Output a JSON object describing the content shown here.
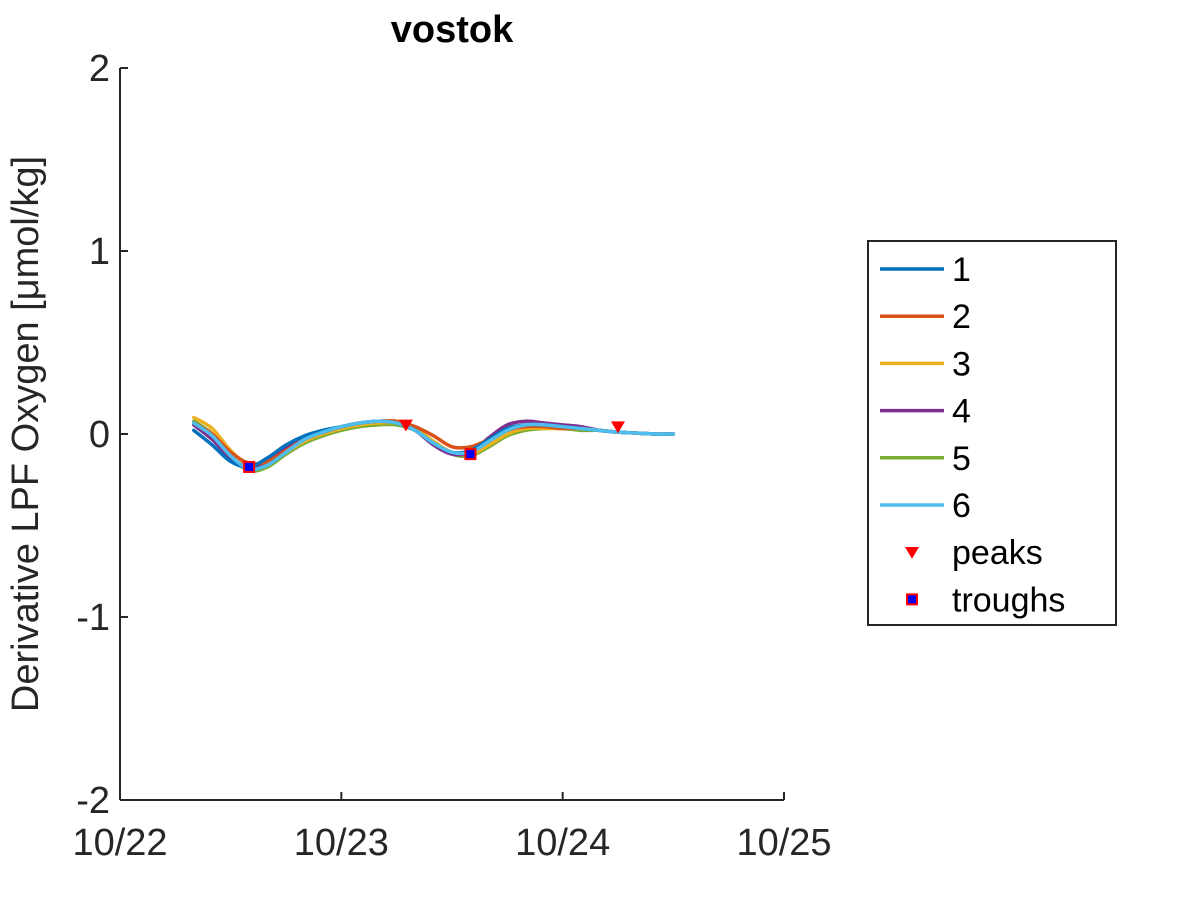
{
  "chart_data": {
    "type": "line",
    "title": "vostok",
    "xlabel": "",
    "ylabel": "Derivative LPF Oxygen [μmol/kg]",
    "xlim": [
      "10/22",
      "10/25"
    ],
    "ylim": [
      -2,
      2
    ],
    "xticks": [
      "10/22",
      "10/23",
      "10/24",
      "10/25"
    ],
    "yticks": [
      -2,
      -1,
      0,
      1,
      2
    ],
    "grid": false,
    "legend_position": "right",
    "series": [
      {
        "name": "1",
        "color": "#0072BD",
        "x": [
          "10/22 08:00",
          "10/22 10:00",
          "10/22 12:00",
          "10/22 14:00",
          "10/22 16:00",
          "10/22 18:00",
          "10/22 20:00",
          "10/22 22:00",
          "10/23 00:00",
          "10/23 02:00",
          "10/23 04:00",
          "10/23 06:00",
          "10/23 08:00",
          "10/23 10:00",
          "10/23 12:00",
          "10/23 14:00",
          "10/23 16:00",
          "10/23 18:00",
          "10/23 20:00",
          "10/23 22:00",
          "10/24 00:00",
          "10/24 02:00",
          "10/24 04:00",
          "10/24 06:00",
          "10/24 08:00",
          "10/24 10:00",
          "10/24 12:00"
        ],
        "y": [
          0.02,
          -0.06,
          -0.15,
          -0.18,
          -0.13,
          -0.06,
          -0.01,
          0.02,
          0.04,
          0.06,
          0.07,
          0.06,
          0.02,
          -0.05,
          -0.1,
          -0.09,
          -0.03,
          0.03,
          0.05,
          0.05,
          0.04,
          0.03,
          0.02,
          0.01,
          0.005,
          0.0,
          0.0
        ]
      },
      {
        "name": "2",
        "color": "#D95319",
        "x": [
          "10/22 08:00",
          "10/22 10:00",
          "10/22 12:00",
          "10/22 14:00",
          "10/22 16:00",
          "10/22 18:00",
          "10/22 20:00",
          "10/22 22:00",
          "10/23 00:00",
          "10/23 02:00",
          "10/23 04:00",
          "10/23 06:00",
          "10/23 08:00",
          "10/23 10:00",
          "10/23 12:00",
          "10/23 14:00",
          "10/23 16:00",
          "10/23 18:00",
          "10/23 20:00",
          "10/23 22:00",
          "10/24 00:00",
          "10/24 02:00",
          "10/24 04:00",
          "10/24 06:00",
          "10/24 08:00",
          "10/24 10:00",
          "10/24 12:00"
        ],
        "y": [
          0.06,
          0.0,
          -0.1,
          -0.16,
          -0.15,
          -0.09,
          -0.03,
          0.01,
          0.04,
          0.06,
          0.07,
          0.07,
          0.04,
          -0.01,
          -0.07,
          -0.07,
          -0.03,
          0.02,
          0.04,
          0.04,
          0.03,
          0.03,
          0.02,
          0.01,
          0.005,
          0.0,
          0.0
        ]
      },
      {
        "name": "3",
        "color": "#EDB120",
        "x": [
          "10/22 08:00",
          "10/22 10:00",
          "10/22 12:00",
          "10/22 14:00",
          "10/22 16:00",
          "10/22 18:00",
          "10/22 20:00",
          "10/22 22:00",
          "10/23 00:00",
          "10/23 02:00",
          "10/23 04:00",
          "10/23 06:00",
          "10/23 08:00",
          "10/23 10:00",
          "10/23 12:00",
          "10/23 14:00",
          "10/23 16:00",
          "10/23 18:00",
          "10/23 20:00",
          "10/23 22:00",
          "10/24 00:00",
          "10/24 02:00",
          "10/24 04:00",
          "10/24 06:00",
          "10/24 08:00",
          "10/24 10:00",
          "10/24 12:00"
        ],
        "y": [
          0.09,
          0.03,
          -0.09,
          -0.17,
          -0.16,
          -0.1,
          -0.04,
          0.0,
          0.03,
          0.05,
          0.06,
          0.06,
          0.03,
          -0.04,
          -0.1,
          -0.11,
          -0.06,
          0.0,
          0.03,
          0.03,
          0.03,
          0.03,
          0.02,
          0.01,
          0.005,
          0.0,
          0.0
        ]
      },
      {
        "name": "4",
        "color": "#7E2F8E",
        "x": [
          "10/22 08:00",
          "10/22 10:00",
          "10/22 12:00",
          "10/22 14:00",
          "10/22 16:00",
          "10/22 18:00",
          "10/22 20:00",
          "10/22 22:00",
          "10/23 00:00",
          "10/23 02:00",
          "10/23 04:00",
          "10/23 06:00",
          "10/23 08:00",
          "10/23 10:00",
          "10/23 12:00",
          "10/23 14:00",
          "10/23 16:00",
          "10/23 18:00",
          "10/23 20:00",
          "10/23 22:00",
          "10/24 00:00",
          "10/24 02:00",
          "10/24 04:00",
          "10/24 06:00",
          "10/24 08:00",
          "10/24 10:00",
          "10/24 12:00"
        ],
        "y": [
          0.05,
          -0.03,
          -0.13,
          -0.18,
          -0.15,
          -0.08,
          -0.02,
          0.01,
          0.04,
          0.06,
          0.07,
          0.06,
          0.02,
          -0.06,
          -0.11,
          -0.1,
          -0.02,
          0.05,
          0.07,
          0.06,
          0.05,
          0.04,
          0.02,
          0.01,
          0.005,
          0.0,
          0.0
        ]
      },
      {
        "name": "5",
        "color": "#77AC30",
        "x": [
          "10/22 08:00",
          "10/22 10:00",
          "10/22 12:00",
          "10/22 14:00",
          "10/22 16:00",
          "10/22 18:00",
          "10/22 20:00",
          "10/22 22:00",
          "10/23 00:00",
          "10/23 02:00",
          "10/23 04:00",
          "10/23 06:00",
          "10/23 08:00",
          "10/23 10:00",
          "10/23 12:00",
          "10/23 14:00",
          "10/23 16:00",
          "10/23 18:00",
          "10/23 20:00",
          "10/23 22:00",
          "10/24 00:00",
          "10/24 02:00",
          "10/24 04:00",
          "10/24 06:00",
          "10/24 08:00",
          "10/24 10:00",
          "10/24 12:00"
        ],
        "y": [
          0.07,
          0.0,
          -0.12,
          -0.2,
          -0.18,
          -0.11,
          -0.05,
          -0.01,
          0.02,
          0.04,
          0.05,
          0.05,
          0.02,
          -0.05,
          -0.11,
          -0.12,
          -0.07,
          -0.01,
          0.02,
          0.03,
          0.03,
          0.02,
          0.02,
          0.01,
          0.005,
          0.0,
          0.0
        ]
      },
      {
        "name": "6",
        "color": "#4DBEEE",
        "x": [
          "10/22 08:00",
          "10/22 10:00",
          "10/22 12:00",
          "10/22 14:00",
          "10/22 16:00",
          "10/22 18:00",
          "10/22 20:00",
          "10/22 22:00",
          "10/23 00:00",
          "10/23 02:00",
          "10/23 04:00",
          "10/23 06:00",
          "10/23 08:00",
          "10/23 10:00",
          "10/23 12:00",
          "10/23 14:00",
          "10/23 16:00",
          "10/23 18:00",
          "10/23 20:00",
          "10/23 22:00",
          "10/24 00:00",
          "10/24 02:00",
          "10/24 04:00",
          "10/24 06:00",
          "10/24 08:00",
          "10/24 10:00",
          "10/24 12:00"
        ],
        "y": [
          0.06,
          -0.01,
          -0.12,
          -0.19,
          -0.17,
          -0.1,
          -0.03,
          0.01,
          0.04,
          0.06,
          0.07,
          0.06,
          0.02,
          -0.05,
          -0.1,
          -0.1,
          -0.04,
          0.02,
          0.05,
          0.05,
          0.04,
          0.03,
          0.02,
          0.01,
          0.005,
          0.0,
          0.0
        ]
      }
    ],
    "peaks": {
      "name": "peaks",
      "color": "#FF0000",
      "marker": "triangle-down",
      "x": [
        "10/23 07:00",
        "10/24 06:00"
      ],
      "y": [
        0.05,
        0.04
      ]
    },
    "troughs": {
      "name": "troughs",
      "color": "#0000FF",
      "edge_color": "#FF0000",
      "marker": "square",
      "x": [
        "10/22 14:00",
        "10/23 14:00"
      ],
      "y": [
        -0.18,
        -0.11
      ]
    }
  }
}
